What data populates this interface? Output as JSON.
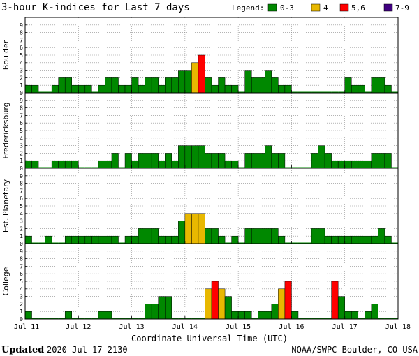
{
  "title": "3-hour K-indices for Last 7 days",
  "legend": {
    "label": "Legend:",
    "items": [
      {
        "label": "0-3",
        "color": "#008800"
      },
      {
        "label": "4",
        "color": "#e8b800"
      },
      {
        "label": "5,6",
        "color": "#ff0000"
      },
      {
        "label": "7-9",
        "color": "#400080"
      }
    ]
  },
  "footer": {
    "updated_label": "Updated",
    "updated_value": "2020 Jul 17 2130",
    "source": "NOAA/SWPC Boulder, CO USA"
  },
  "chart_data": {
    "type": "bar",
    "xlabel": "Coordinate Universal Time (UTC)",
    "x_ticks": [
      "Jul 11",
      "Jul 12",
      "Jul 13",
      "Jul 14",
      "Jul 15",
      "Jul 16",
      "Jul 17",
      "Jul 18"
    ],
    "ylim": [
      0,
      9
    ],
    "y_ticks": [
      "0",
      "1",
      "2",
      "3",
      "4",
      "5",
      "6",
      "7",
      "8",
      "9"
    ],
    "grid": true,
    "bins_per_day": 8,
    "color_scale": [
      {
        "range": "0-3",
        "color": "#008800"
      },
      {
        "range": "4",
        "color": "#e8b800"
      },
      {
        "range": "5,6",
        "color": "#ff0000"
      },
      {
        "range": "7-9",
        "color": "#400080"
      }
    ],
    "series": [
      {
        "name": "Boulder",
        "values": [
          1,
          1,
          0,
          0,
          1,
          2,
          2,
          1,
          1,
          1,
          0,
          1,
          2,
          2,
          1,
          1,
          2,
          1,
          2,
          2,
          1,
          2,
          2,
          3,
          3,
          4,
          5,
          2,
          1,
          2,
          1,
          1,
          0,
          3,
          2,
          2,
          3,
          2,
          1,
          1,
          0,
          0,
          0,
          0,
          0,
          0,
          0,
          0,
          2,
          1,
          1,
          0,
          2,
          2,
          1,
          0
        ]
      },
      {
        "name": "Fredericksburg",
        "values": [
          1,
          1,
          0,
          0,
          1,
          1,
          1,
          1,
          0,
          0,
          0,
          1,
          1,
          2,
          0,
          2,
          1,
          2,
          2,
          2,
          1,
          2,
          1,
          3,
          3,
          3,
          3,
          2,
          2,
          2,
          1,
          1,
          0,
          2,
          2,
          2,
          3,
          2,
          2,
          0,
          0,
          0,
          0,
          2,
          3,
          2,
          1,
          1,
          1,
          1,
          1,
          1,
          2,
          2,
          2,
          0
        ]
      },
      {
        "name": "Est. Planetary",
        "values": [
          1,
          0,
          0,
          1,
          0,
          0,
          1,
          1,
          1,
          1,
          1,
          1,
          1,
          1,
          0,
          1,
          1,
          2,
          2,
          2,
          1,
          1,
          1,
          3,
          4,
          4,
          4,
          2,
          2,
          1,
          0,
          1,
          0,
          2,
          2,
          2,
          2,
          2,
          1,
          0,
          0,
          0,
          0,
          2,
          2,
          1,
          1,
          1,
          1,
          1,
          1,
          1,
          1,
          2,
          1,
          0
        ]
      },
      {
        "name": "College",
        "values": [
          1,
          0,
          0,
          0,
          0,
          0,
          1,
          0,
          0,
          0,
          0,
          1,
          1,
          0,
          0,
          0,
          0,
          0,
          2,
          2,
          3,
          3,
          0,
          0,
          0,
          0,
          0,
          4,
          5,
          4,
          3,
          1,
          1,
          1,
          0,
          1,
          1,
          2,
          4,
          5,
          1,
          0,
          0,
          0,
          0,
          0,
          5,
          3,
          1,
          1,
          0,
          1,
          2,
          0,
          0,
          0
        ]
      }
    ]
  }
}
